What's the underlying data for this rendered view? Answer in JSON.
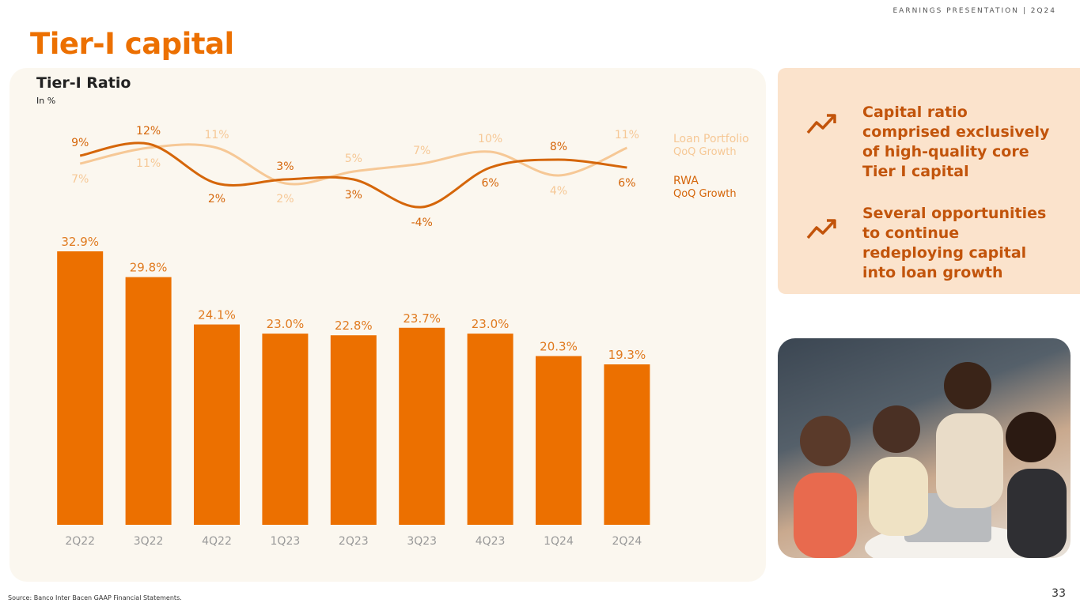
{
  "header": {
    "tag": "EARNINGS PRESENTATION | 2Q24",
    "title": "Tier-I capital"
  },
  "chart_data": {
    "type": "bar-line",
    "title": "Tier-I Ratio",
    "subtitle": "In %",
    "categories": [
      "2Q22",
      "3Q22",
      "4Q22",
      "1Q23",
      "2Q23",
      "3Q23",
      "4Q23",
      "1Q24",
      "2Q24"
    ],
    "values": [
      32.9,
      29.8,
      24.1,
      23.0,
      22.8,
      23.7,
      23.0,
      20.3,
      19.3
    ],
    "value_labels": [
      "32.9%",
      "29.8%",
      "24.1%",
      "23.0%",
      "22.8%",
      "23.7%",
      "23.0%",
      "20.3%",
      "19.3%"
    ],
    "color": "#ec7000",
    "series": [
      {
        "name": "Loan Portfolio",
        "description": "QoQ Growth",
        "color": "#f6c896",
        "values": [
          7,
          11,
          11,
          2,
          5,
          7,
          10,
          4,
          11
        ],
        "value_labels": [
          "7%",
          "11%",
          "11%",
          "2%",
          "5%",
          "7%",
          "10%",
          "4%",
          "11%"
        ]
      },
      {
        "name": "RWA",
        "description": "QoQ Growth",
        "color": "#d5660a",
        "values": [
          9,
          12,
          2,
          3,
          3,
          -4,
          6,
          8,
          6
        ],
        "value_labels": [
          "9%",
          "12%",
          "2%",
          "3%",
          "3%",
          "-4%",
          "6%",
          "8%",
          "6%"
        ]
      }
    ]
  },
  "bullets": [
    "Capital ratio comprised exclusively of high-quality core Tier I capital",
    "Several opportunities to continue redeploying capital into loan growth"
  ],
  "footer": {
    "source": "Source: Banco Inter Bacen GAAP Financial Statements.",
    "page": "33"
  }
}
